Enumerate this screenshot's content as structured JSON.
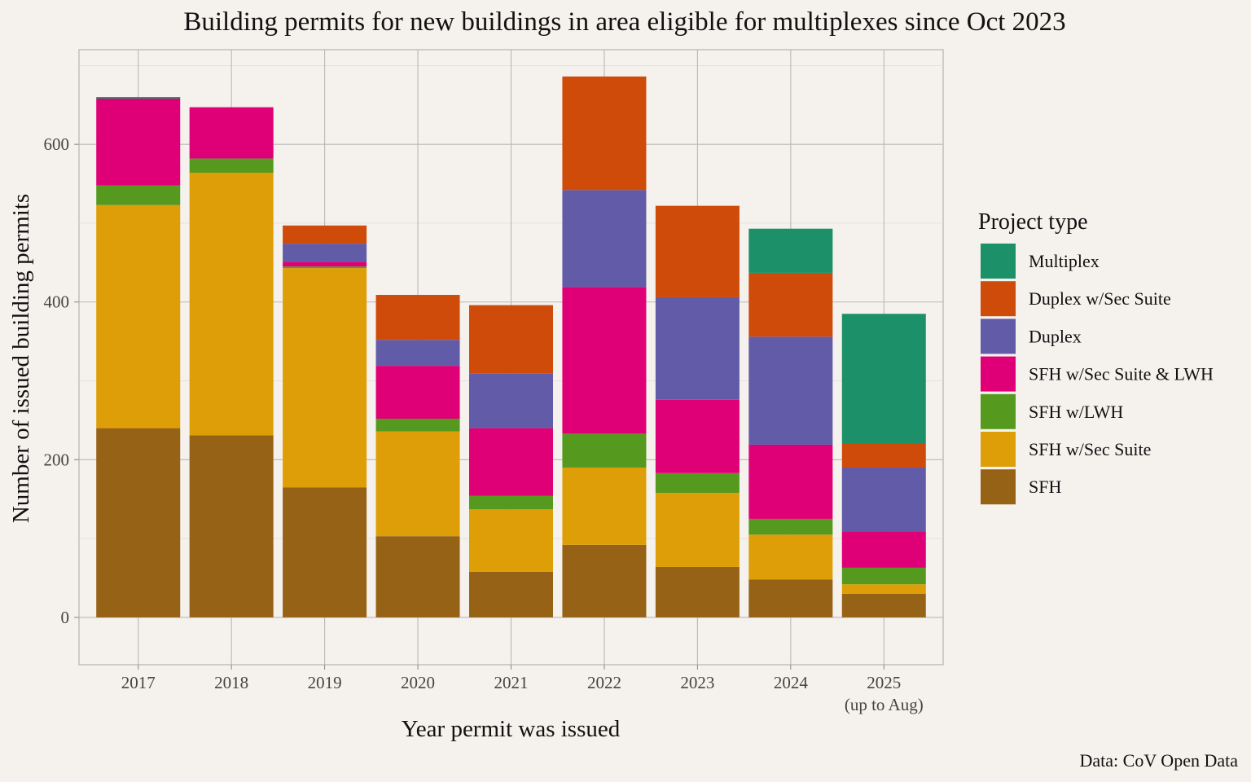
{
  "chart_data": {
    "type": "bar",
    "stacked": true,
    "title": "Building permits for new buildings in area eligible for multiplexes since Oct 2023",
    "xlabel": "Year permit was issued",
    "ylabel": "Number of issued building permits",
    "caption": "Data: CoV Open Data",
    "ylim": [
      -60,
      720
    ],
    "yticks": [
      0,
      200,
      400,
      600
    ],
    "grid": true,
    "legend": {
      "title": "Project type",
      "position": "right"
    },
    "categories": [
      [
        "2017"
      ],
      [
        "2018"
      ],
      [
        "2019"
      ],
      [
        "2020"
      ],
      [
        "2021"
      ],
      [
        "2022"
      ],
      [
        "2023"
      ],
      [
        "2024"
      ],
      [
        "2025",
        "(up to Aug)"
      ]
    ],
    "series": [
      {
        "name": "SFH",
        "color": "#966216",
        "values": [
          240,
          231,
          165,
          103,
          58,
          92,
          64,
          48,
          30
        ]
      },
      {
        "name": "SFH w/Sec Suite",
        "color": "#de9e07",
        "values": [
          283,
          333,
          278,
          133,
          79,
          98,
          94,
          57,
          12
        ]
      },
      {
        "name": "SFH w/LWH",
        "color": "#559a1e",
        "values": [
          25,
          18,
          2,
          16,
          17,
          43,
          25,
          20,
          21
        ]
      },
      {
        "name": "SFH w/Sec Suite & LWH",
        "color": "#df0077",
        "values": [
          110,
          65,
          6,
          67,
          86,
          186,
          93,
          94,
          46
        ]
      },
      {
        "name": "Duplex",
        "color": "#625ba7",
        "values": [
          0,
          0,
          23,
          33,
          69,
          123,
          130,
          137,
          81
        ]
      },
      {
        "name": "Duplex w/Sec Suite",
        "color": "#cf4b0a",
        "values": [
          0,
          0,
          23,
          57,
          87,
          144,
          116,
          81,
          31
        ]
      },
      {
        "name": "Multiplex",
        "color": "#1c9169",
        "values": [
          2,
          0,
          0,
          0,
          0,
          0,
          0,
          56,
          164
        ]
      }
    ]
  }
}
